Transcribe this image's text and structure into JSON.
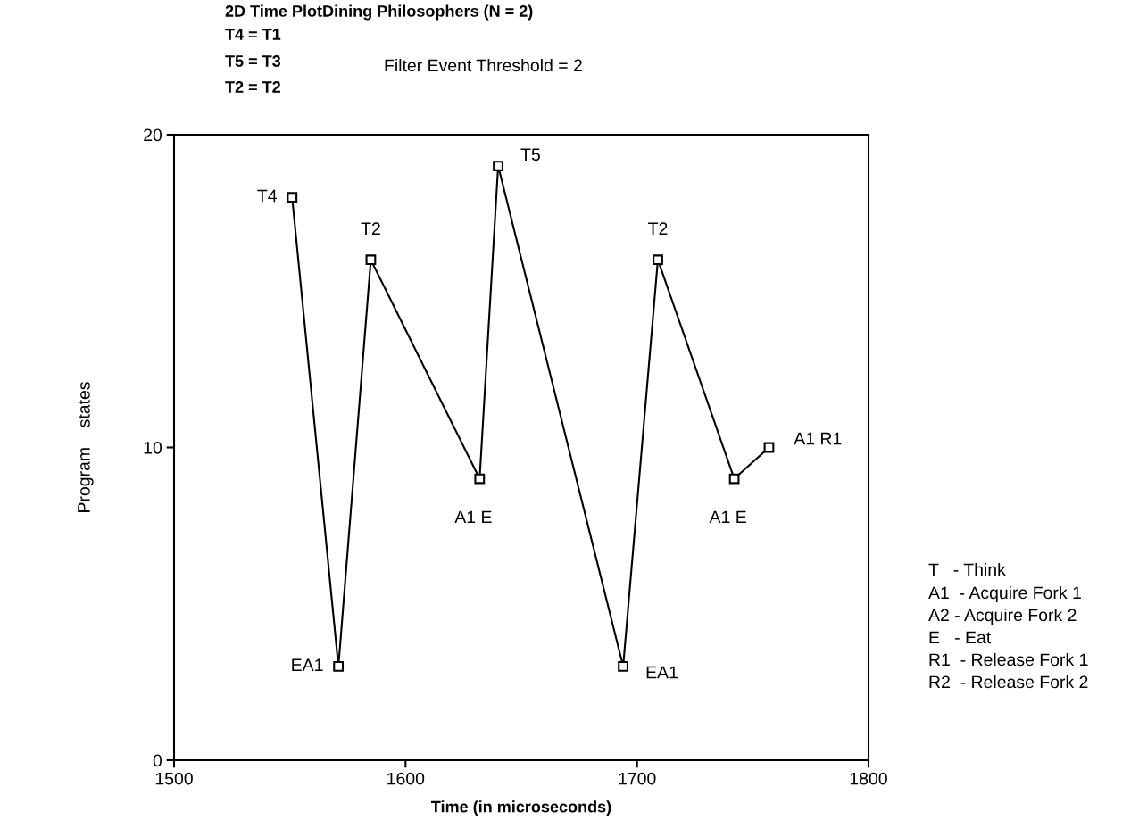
{
  "chart_data": {
    "type": "line",
    "title": "2D Time PlotDining Philosophers (N = 2)",
    "xlabel": "Time (in microseconds)",
    "ylabel": "Program    states",
    "x": [
      1551,
      1571,
      1585,
      1632,
      1640,
      1694,
      1709,
      1742,
      1757
    ],
    "series": [
      {
        "color": "#000000",
        "values": [
          18,
          3,
          16,
          9,
          19,
          3,
          16,
          9,
          10
        ]
      }
    ],
    "xlim": [
      1500,
      1800
    ],
    "xticks": [
      1500,
      1600,
      1700,
      1800
    ],
    "ylim": [
      0,
      20
    ],
    "yticks": [
      0,
      10,
      20
    ],
    "grid": false,
    "legend": false,
    "marker": "square",
    "line_style": "solid",
    "annotations": [
      {
        "text": "T4",
        "x": 1551,
        "y": 18
      },
      {
        "text": "EA1",
        "x": 1571,
        "y": 3
      },
      {
        "text": "T2",
        "x": 1585,
        "y": 16
      },
      {
        "text": "A1 E",
        "x": 1632,
        "y": 9
      },
      {
        "text": "T5",
        "x": 1640,
        "y": 19
      },
      {
        "text": "EA1",
        "x": 1694,
        "y": 3
      },
      {
        "text": "T2",
        "x": 1709,
        "y": 16
      },
      {
        "text": "A1 E",
        "x": 1742,
        "y": 9
      },
      {
        "text": "A1 R1",
        "x": 1757,
        "y": 10
      },
      "T4 = T1",
      "T5 = T3",
      "T2 = T2",
      "Filter Event Threshold = 2",
      "T   - Think",
      "A1  - Acquire Fork 1",
      "A2 - Acquire Fork 2",
      "E   - Eat",
      "R1  - Release Fork 1",
      "R2  - Release Fork 2"
    ]
  }
}
